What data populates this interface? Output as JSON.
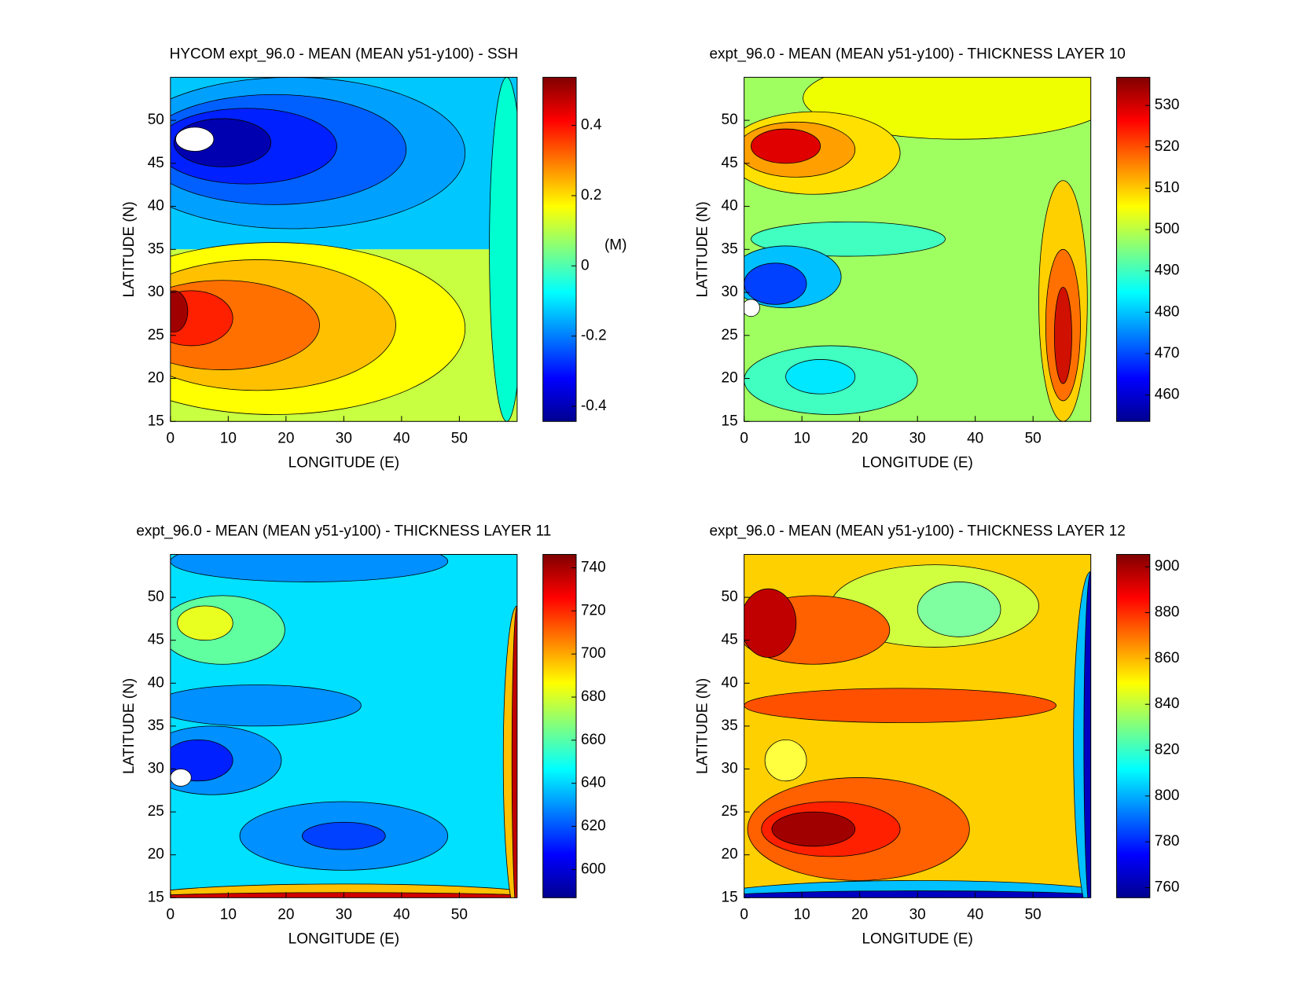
{
  "chart_data": [
    {
      "type": "contour",
      "title": "HYCOM expt_96.0 - MEAN (MEAN y51-y100) - SSH",
      "xlabel": "LONGITUDE (E)",
      "ylabel": "LATITUDE (N)",
      "xlim": [
        0,
        60
      ],
      "ylim": [
        15,
        55
      ],
      "xticks": [
        0,
        10,
        20,
        30,
        40,
        50
      ],
      "yticks": [
        15,
        20,
        25,
        30,
        35,
        40,
        45,
        50
      ],
      "clim": [
        -0.443,
        0.537
      ],
      "cticks": [
        -0.4,
        -0.2,
        0,
        0.2,
        0.4
      ],
      "colorbar_label": "(M)"
    },
    {
      "type": "contour",
      "title": "expt_96.0 - MEAN (MEAN y51-y100) - THICKNESS LAYER 10",
      "xlabel": "LONGITUDE (E)",
      "ylabel": "LATITUDE (N)",
      "xlim": [
        0,
        60
      ],
      "ylim": [
        15,
        55
      ],
      "xticks": [
        0,
        10,
        20,
        30,
        40,
        50
      ],
      "yticks": [
        15,
        20,
        25,
        30,
        35,
        40,
        45,
        50
      ],
      "clim": [
        453.6,
        536.8
      ],
      "cticks": [
        460,
        470,
        480,
        490,
        500,
        510,
        520,
        530
      ]
    },
    {
      "type": "contour",
      "title": "expt_96.0 - MEAN (MEAN y51-y100) - THICKNESS LAYER 11",
      "xlabel": "LONGITUDE (E)",
      "ylabel": "LATITUDE (N)",
      "xlim": [
        0,
        60
      ],
      "ylim": [
        15,
        55
      ],
      "xticks": [
        0,
        10,
        20,
        30,
        40,
        50
      ],
      "yticks": [
        15,
        20,
        25,
        30,
        35,
        40,
        45,
        50
      ],
      "clim": [
        586.9,
        746.2
      ],
      "cticks": [
        600,
        620,
        640,
        660,
        680,
        700,
        720,
        740
      ]
    },
    {
      "type": "contour",
      "title": "expt_96.0 - MEAN (MEAN y51-y100) - THICKNESS LAYER 12",
      "xlabel": "LONGITUDE (E)",
      "ylabel": "LATITUDE (N)",
      "xlim": [
        0,
        60
      ],
      "ylim": [
        15,
        55
      ],
      "xticks": [
        0,
        10,
        20,
        30,
        40,
        50
      ],
      "yticks": [
        15,
        20,
        25,
        30,
        35,
        40,
        45,
        50
      ],
      "clim": [
        755.6,
        905.4
      ],
      "cticks": [
        760,
        780,
        800,
        820,
        840,
        860,
        880,
        900
      ]
    }
  ]
}
